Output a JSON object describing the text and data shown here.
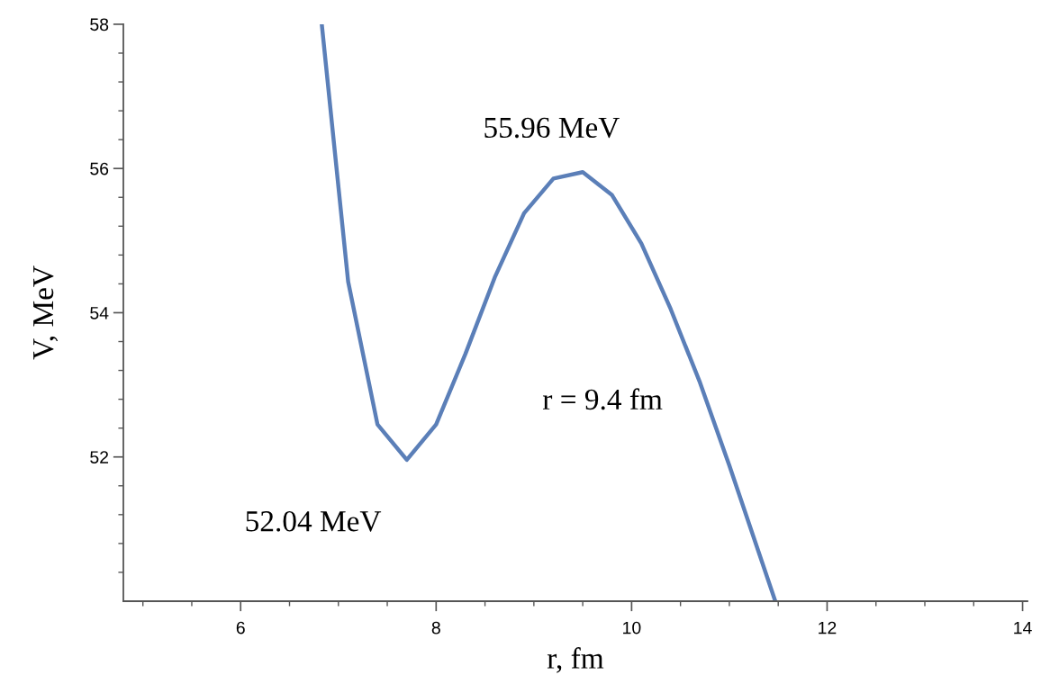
{
  "chart_data": {
    "type": "line",
    "xlabel": "r, fm",
    "ylabel": "V, MeV",
    "x": [
      6.83,
      7.1,
      7.4,
      7.7,
      8.0,
      8.3,
      8.6,
      8.9,
      9.2,
      9.5,
      9.8,
      10.1,
      10.4,
      10.7,
      11.0,
      11.47
    ],
    "series": [
      {
        "color": "#5b7fb8",
        "values": [
          58.0,
          54.43,
          52.45,
          51.96,
          52.45,
          53.43,
          54.49,
          55.38,
          55.86,
          55.95,
          55.63,
          54.96,
          54.05,
          53.03,
          51.88,
          50.0
        ]
      }
    ],
    "xlim": [
      4.8,
      14.05
    ],
    "ylim": [
      50,
      58
    ],
    "xticks": [
      {
        "value": 5,
        "label": null
      },
      {
        "value": 5.5,
        "label": null
      },
      6,
      {
        "value": 6.5,
        "label": null
      },
      {
        "value": 7,
        "label": null
      },
      {
        "value": 7.5,
        "label": null
      },
      8,
      {
        "value": 8.5,
        "label": null
      },
      {
        "value": 9,
        "label": null
      },
      {
        "value": 9.5,
        "label": null
      },
      10,
      {
        "value": 10.5,
        "label": null
      },
      {
        "value": 11,
        "label": null
      },
      {
        "value": 11.5,
        "label": null
      },
      12,
      {
        "value": 12.5,
        "label": null
      },
      {
        "value": 13,
        "label": null
      },
      {
        "value": 13.5,
        "label": null
      },
      14
    ],
    "yticks": [
      {
        "value": 50.4,
        "label": null
      },
      {
        "value": 50.8,
        "label": null
      },
      {
        "value": 51.2,
        "label": null
      },
      {
        "value": 51.6,
        "label": null
      },
      52,
      {
        "value": 52.4,
        "label": null
      },
      {
        "value": 52.8,
        "label": null
      },
      {
        "value": 53.2,
        "label": null
      },
      {
        "value": 53.6,
        "label": null
      },
      54,
      {
        "value": 54.4,
        "label": null
      },
      {
        "value": 54.8,
        "label": null
      },
      {
        "value": 55.2,
        "label": null
      },
      {
        "value": 55.6,
        "label": null
      },
      56,
      {
        "value": 56.4,
        "label": null
      },
      {
        "value": 56.8,
        "label": null
      },
      {
        "value": 57.2,
        "label": null
      },
      {
        "value": 57.6,
        "label": null
      },
      58
    ],
    "annotations": [
      {
        "text": "55.96 MeV",
        "x": 9.5,
        "y": 55.96
      },
      {
        "text": "52.04 MeV",
        "x": 7.7,
        "y": 52.04
      },
      "r = 9.4 fm"
    ],
    "grid": false,
    "legend": false,
    "marker": "none",
    "line_style": "solid"
  }
}
